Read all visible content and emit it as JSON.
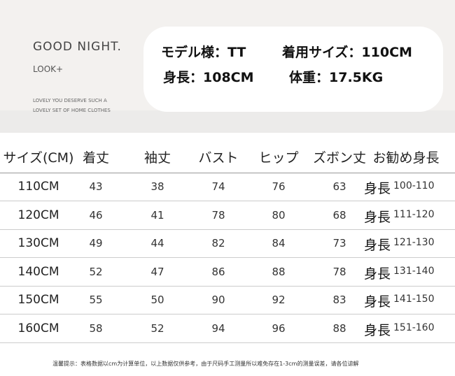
{
  "header": {
    "title": "GOOD NIGHT.",
    "subtitle": "LOOK+",
    "tagline": [
      "LOVELY YOU DESERVE SUCH A",
      "LOVELY SET OF HOME CLOTHES"
    ]
  },
  "model": {
    "items": [
      "モデル様：TT",
      "着用サイズ：110CM",
      "身長：108CM",
      "体重：17.5KG"
    ]
  },
  "table": {
    "columns": [
      "サイズ(CM)",
      "着丈",
      "袖丈",
      "バスト",
      "ヒップ",
      "ズボン丈",
      "お勧め身長"
    ],
    "rows": [
      [
        "110CM",
        43,
        38,
        74,
        76,
        63,
        {
          "prefix": "身長",
          "range": "100-110"
        }
      ],
      [
        "120CM",
        46,
        41,
        78,
        80,
        68,
        {
          "prefix": "身長",
          "range": "111-120"
        }
      ],
      [
        "130CM",
        49,
        44,
        82,
        84,
        73,
        {
          "prefix": "身長",
          "range": "121-130"
        }
      ],
      [
        "140CM",
        52,
        47,
        86,
        88,
        78,
        {
          "prefix": "身長",
          "range": "131-140"
        }
      ],
      [
        "150CM",
        55,
        50,
        90,
        92,
        83,
        {
          "prefix": "身長",
          "range": "141-150"
        }
      ],
      [
        "160CM",
        58,
        52,
        94,
        96,
        88,
        {
          "prefix": "身長",
          "range": "151-160"
        }
      ]
    ]
  },
  "footer": {
    "note": "温馨提示：表格数据以cm为计算单位，以上数据仅供参考，由于尺码手工测量所以难免存在1-3cm的测量误差，请各位谅解"
  }
}
